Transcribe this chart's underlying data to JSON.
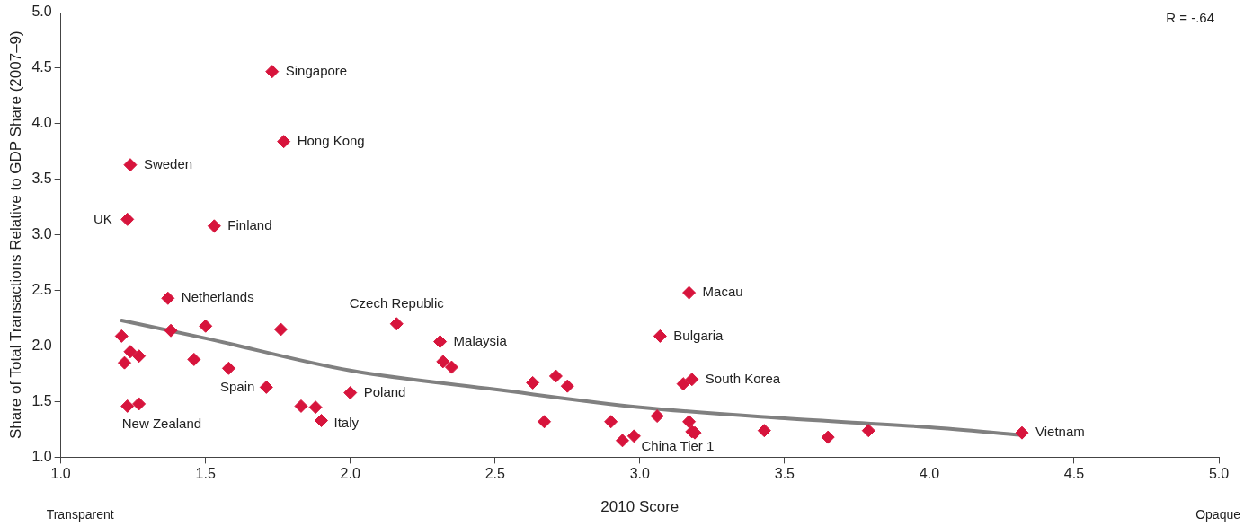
{
  "chart_data": {
    "type": "scatter",
    "xlabel": "2010 Score",
    "ylabel": "Share of Total Transactions Relative to GDP Share (2007–9)",
    "xlim": [
      1,
      5
    ],
    "xticks": [
      {
        "value": 1,
        "label": "1.0"
      },
      {
        "value": 1.5,
        "label": "1.5"
      },
      {
        "value": 2,
        "label": "2.0"
      },
      {
        "value": 2.5,
        "label": "2.5"
      },
      {
        "value": 3,
        "label": "3.0"
      },
      {
        "value": 3.5,
        "label": "3.5"
      },
      {
        "value": 4,
        "label": "4.0"
      },
      {
        "value": 4.5,
        "label": "4.5"
      },
      {
        "value": 5,
        "label": "5.0"
      }
    ],
    "ylim": [
      1,
      5
    ],
    "yticks": [
      {
        "value": 1,
        "label": "1.0"
      },
      {
        "value": 1.5,
        "label": "1.5"
      },
      {
        "value": 2,
        "label": "2.0"
      },
      {
        "value": 2.5,
        "label": "2.5"
      },
      {
        "value": 3,
        "label": "3.0"
      },
      {
        "value": 3.5,
        "label": "3.5"
      },
      {
        "value": 4,
        "label": "4.0"
      },
      {
        "value": 4.5,
        "label": "4.5"
      },
      {
        "value": 5,
        "label": "5.0"
      }
    ],
    "grid": false,
    "legend": false,
    "marker": "diamond",
    "series": [
      {
        "color": "#d7143c",
        "x": [
          1.73,
          1.77,
          1.24,
          1.23,
          1.53,
          1.37,
          2.16,
          3.17,
          3.07,
          2.31,
          3.18,
          3.15,
          1.71,
          2.0,
          1.9,
          1.23,
          1.27,
          2.94,
          4.32,
          1.21,
          1.38,
          1.5,
          1.76,
          1.24,
          1.27,
          1.22,
          1.46,
          1.58,
          1.83,
          1.88,
          2.32,
          2.35,
          2.63,
          2.71,
          2.75,
          2.67,
          2.9,
          2.98,
          3.06,
          3.17,
          3.18,
          3.19,
          3.43,
          3.65,
          3.79
        ],
        "values": [
          4.47,
          3.84,
          3.63,
          3.14,
          3.08,
          2.43,
          2.2,
          2.48,
          2.09,
          2.04,
          1.7,
          1.66,
          1.63,
          1.58,
          1.33,
          1.46,
          1.48,
          1.15,
          1.22,
          2.09,
          2.14,
          2.18,
          2.15,
          1.95,
          1.91,
          1.85,
          1.88,
          1.8,
          1.46,
          1.45,
          1.86,
          1.81,
          1.67,
          1.73,
          1.64,
          1.32,
          1.32,
          1.19,
          1.37,
          1.32,
          1.23,
          1.22,
          1.24,
          1.18,
          1.24
        ]
      },
      {
        "type": "line",
        "color": "#808080",
        "marker": "none",
        "x": [
          1.21,
          1.5,
          2.0,
          2.5,
          3.0,
          3.5,
          4.0,
          4.32
        ],
        "values": [
          2.23,
          2.07,
          1.78,
          1.61,
          1.45,
          1.35,
          1.27,
          1.2
        ]
      }
    ],
    "annotations": [
      "R = -.64",
      "Transparent",
      "Opaque",
      {
        "text": "Singapore",
        "x": 1.73,
        "y": 4.47
      },
      {
        "text": "Hong Kong",
        "x": 1.77,
        "y": 3.84
      },
      {
        "text": "Sweden",
        "x": 1.24,
        "y": 3.63
      },
      {
        "text": "UK",
        "x": 1.23,
        "y": 3.14
      },
      {
        "text": "Finland",
        "x": 1.53,
        "y": 3.08
      },
      {
        "text": "Netherlands",
        "x": 1.37,
        "y": 2.43
      },
      {
        "text": "Czech Republic",
        "x": 2.16,
        "y": 2.2
      },
      {
        "text": "Macau",
        "x": 3.17,
        "y": 2.48
      },
      {
        "text": "Bulgaria",
        "x": 3.07,
        "y": 2.09
      },
      {
        "text": "Malaysia",
        "x": 2.31,
        "y": 2.04
      },
      {
        "text": "South Korea",
        "x": 3.18,
        "y": 1.7
      },
      {
        "text": "Spain",
        "x": 1.71,
        "y": 1.63
      },
      {
        "text": "Poland",
        "x": 2.0,
        "y": 1.58
      },
      {
        "text": "Italy",
        "x": 1.9,
        "y": 1.33
      },
      {
        "text": "New Zealand",
        "x": 1.23,
        "y": 1.46
      },
      {
        "text": "China Tier 1",
        "x": 2.94,
        "y": 1.15
      },
      {
        "text": "Vietnam",
        "x": 4.32,
        "y": 1.22
      }
    ]
  }
}
